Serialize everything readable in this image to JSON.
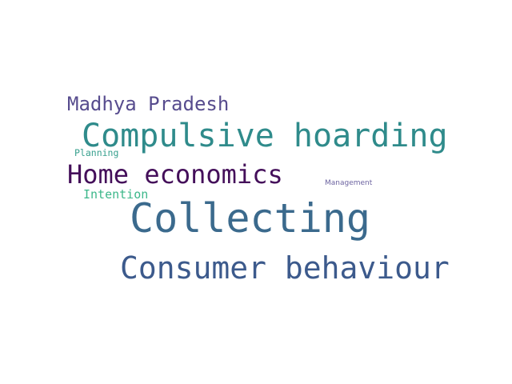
{
  "word_cloud": {
    "words": [
      {
        "id": "collecting",
        "text": "Collecting",
        "color": "#3b6a8d"
      },
      {
        "id": "compulsive_hoarding",
        "text": "Compulsive hoarding",
        "color": "#2f8b8b"
      },
      {
        "id": "consumer_behaviour",
        "text": "Consumer behaviour",
        "color": "#3c5a8c"
      },
      {
        "id": "home_economics",
        "text": "Home economics",
        "color": "#440f5a"
      },
      {
        "id": "madhya_pradesh",
        "text": "Madhya Pradesh",
        "color": "#574c8e"
      },
      {
        "id": "intention",
        "text": "Intention",
        "color": "#3cb78a"
      },
      {
        "id": "planning",
        "text": "Planning",
        "color": "#37a08e"
      },
      {
        "id": "management",
        "text": "Management",
        "color": "#6c63a0"
      }
    ]
  }
}
